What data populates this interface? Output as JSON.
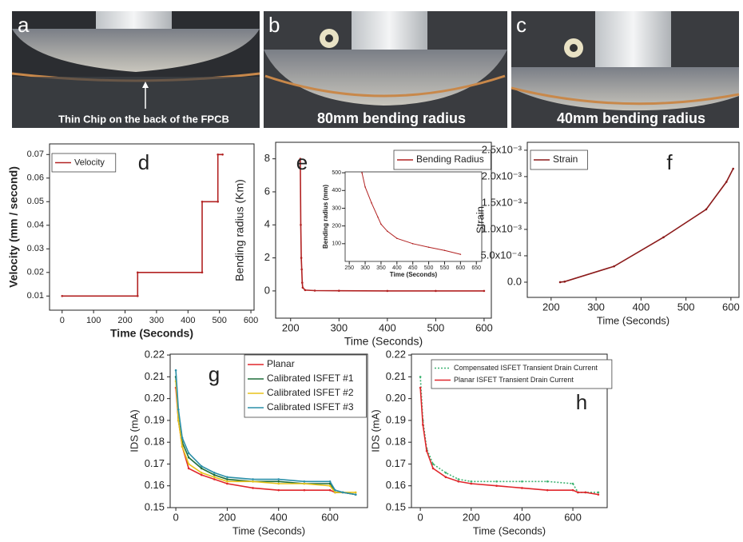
{
  "photos": [
    {
      "label": "a",
      "caption": "Thin Chip on the back of the FPCB"
    },
    {
      "label": "b",
      "caption": "80mm bending radius"
    },
    {
      "label": "c",
      "caption": "40mm bending radius"
    }
  ],
  "chart_data": [
    {
      "type": "line",
      "annotation": "d",
      "xlabel": "Time (Seconds)",
      "ylabel": "Velocity (mm / second)",
      "x": [
        0,
        240,
        240,
        445,
        445,
        495,
        495,
        510
      ],
      "series": [
        {
          "name": "Velocity",
          "color": "#b22222",
          "values": [
            0.01,
            0.01,
            0.02,
            0.02,
            0.05,
            0.05,
            0.07,
            0.07
          ]
        }
      ],
      "xlim": [
        -40,
        610
      ],
      "xticks": [
        0,
        100,
        200,
        300,
        400,
        500,
        600
      ],
      "ylim": [
        0.004,
        0.0745
      ],
      "yticks": [
        0.01,
        0.02,
        0.03,
        0.04,
        0.05,
        0.06,
        0.07
      ],
      "legend": "upper left"
    },
    {
      "type": "line",
      "annotation": "e",
      "xlabel": "Time (Seconds)",
      "ylabel": "Bending radius (Km)",
      "x": [
        220,
        221,
        222,
        223,
        224,
        225,
        230,
        250,
        300,
        400,
        500,
        600
      ],
      "series": [
        {
          "name": "Bending Radius",
          "color": "#b22222",
          "values": [
            8,
            4,
            2,
            1.3,
            0.5,
            0.2,
            0.05,
            0.02,
            0.01,
            0,
            0,
            0
          ]
        }
      ],
      "xlim": [
        169,
        615
      ],
      "xticks": [
        200,
        300,
        400,
        500,
        600
      ],
      "ylim": [
        -1.65,
        9.0
      ],
      "yticks": [
        0,
        2,
        4,
        6,
        8
      ],
      "legend": "upper right"
    },
    {
      "type": "line",
      "xlabel": "Time (Seconds)",
      "ylabel": "Bending radius (mm)",
      "x": [
        290,
        300,
        320,
        340,
        350,
        370,
        400,
        450,
        500,
        550,
        600
      ],
      "series": [
        {
          "color": "#b22222",
          "values": [
            500,
            420,
            330,
            250,
            210,
            170,
            130,
            100,
            80,
            62,
            40
          ]
        }
      ],
      "xlim": [
        237,
        667
      ],
      "xticks": [
        250,
        300,
        350,
        400,
        450,
        500,
        550,
        600,
        650
      ],
      "ylim": [
        0,
        505
      ],
      "yticks": [
        100,
        200,
        300,
        400,
        500
      ]
    },
    {
      "type": "line",
      "annotation": "f",
      "xlabel": "Time (Seconds)",
      "ylabel": "Strain",
      "x": [
        220,
        230,
        340,
        450,
        545,
        590,
        605
      ],
      "series": [
        {
          "name": "Strain",
          "color": "#8b1a1a",
          "values": [
            0,
            1e-05,
            0.0003,
            0.00085,
            0.00138,
            0.0019,
            0.00215
          ]
        }
      ],
      "xlim": [
        147,
        618
      ],
      "xticks": [
        200,
        300,
        400,
        500,
        600
      ],
      "ylim": [
        -0.000288,
        0.00265
      ],
      "yticks": [
        {
          "value": 0,
          "label": "0.0"
        },
        {
          "value": 0.0005,
          "label": "5.0x10⁻⁴"
        },
        {
          "value": 0.001,
          "label": "1.0x10⁻³"
        },
        {
          "value": 0.0015,
          "label": "1.5x10⁻³"
        },
        {
          "value": 0.002,
          "label": "2.0x10⁻³"
        },
        {
          "value": 0.0025,
          "label": "2.5x10⁻³"
        }
      ],
      "legend": "upper left"
    },
    {
      "type": "line",
      "annotation": "g",
      "xlabel": "Time (Seconds)",
      "ylabel": "IDS (mA)",
      "x": [
        0,
        10,
        25,
        50,
        100,
        150,
        200,
        300,
        400,
        500,
        600,
        620,
        650,
        700
      ],
      "series": [
        {
          "name": "Planar",
          "color": "#e0262b",
          "values": [
            0.205,
            0.19,
            0.178,
            0.168,
            0.165,
            0.163,
            0.161,
            0.159,
            0.158,
            0.158,
            0.158,
            0.157,
            0.157,
            0.156
          ]
        },
        {
          "name": "Calibrated ISFET #1",
          "color": "#1e6e3c",
          "values": [
            0.21,
            0.19,
            0.18,
            0.173,
            0.168,
            0.165,
            0.163,
            0.162,
            0.162,
            0.161,
            0.161,
            0.157,
            0.157,
            0.156
          ]
        },
        {
          "name": "Calibrated ISFET #2",
          "color": "#e8c21a",
          "values": [
            0.208,
            0.19,
            0.178,
            0.17,
            0.166,
            0.164,
            0.162,
            0.162,
            0.161,
            0.161,
            0.16,
            0.157,
            0.157,
            0.157
          ]
        },
        {
          "name": "Calibrated ISFET #3",
          "color": "#2a8fa8",
          "values": [
            0.213,
            0.195,
            0.182,
            0.175,
            0.169,
            0.166,
            0.164,
            0.163,
            0.163,
            0.162,
            0.162,
            0.158,
            0.157,
            0.156
          ]
        }
      ],
      "xlim": [
        -22,
        746
      ],
      "xticks": [
        0,
        200,
        400,
        600
      ],
      "ylim": [
        0.15,
        0.2204
      ],
      "yticks": [
        0.15,
        0.16,
        0.17,
        0.18,
        0.19,
        {
          "value": 0.2,
          "label": "0.20"
        },
        0.21,
        0.22
      ],
      "legend": "upper right"
    },
    {
      "type": "line",
      "annotation": "h",
      "xlabel": "Time (Seconds)",
      "ylabel": "IDS (mA)",
      "x": [
        0,
        10,
        25,
        50,
        100,
        150,
        200,
        300,
        400,
        500,
        600,
        620,
        650,
        700
      ],
      "series": [
        {
          "name": "Compensated ISFET Transient Drain Current",
          "color": "#3cb371",
          "line_style": "dotted",
          "values": [
            0.21,
            0.19,
            0.177,
            0.17,
            0.166,
            0.163,
            0.162,
            0.162,
            0.162,
            0.162,
            0.161,
            0.157,
            0.157,
            0.157
          ]
        },
        {
          "name": "Planar ISFET Transient Drain Current",
          "color": "#e0262b",
          "values": [
            0.205,
            0.188,
            0.176,
            0.168,
            0.164,
            0.162,
            0.161,
            0.16,
            0.159,
            0.158,
            0.158,
            0.157,
            0.157,
            0.156
          ]
        }
      ],
      "xlim": [
        -35,
        735
      ],
      "xticks": [
        0,
        200,
        400,
        600
      ],
      "ylim": [
        0.15,
        0.2204
      ],
      "yticks": [
        0.15,
        0.16,
        0.17,
        0.18,
        0.19,
        {
          "value": 0.2,
          "label": "0.20"
        },
        0.21,
        0.22
      ],
      "legend": "upper center"
    }
  ]
}
